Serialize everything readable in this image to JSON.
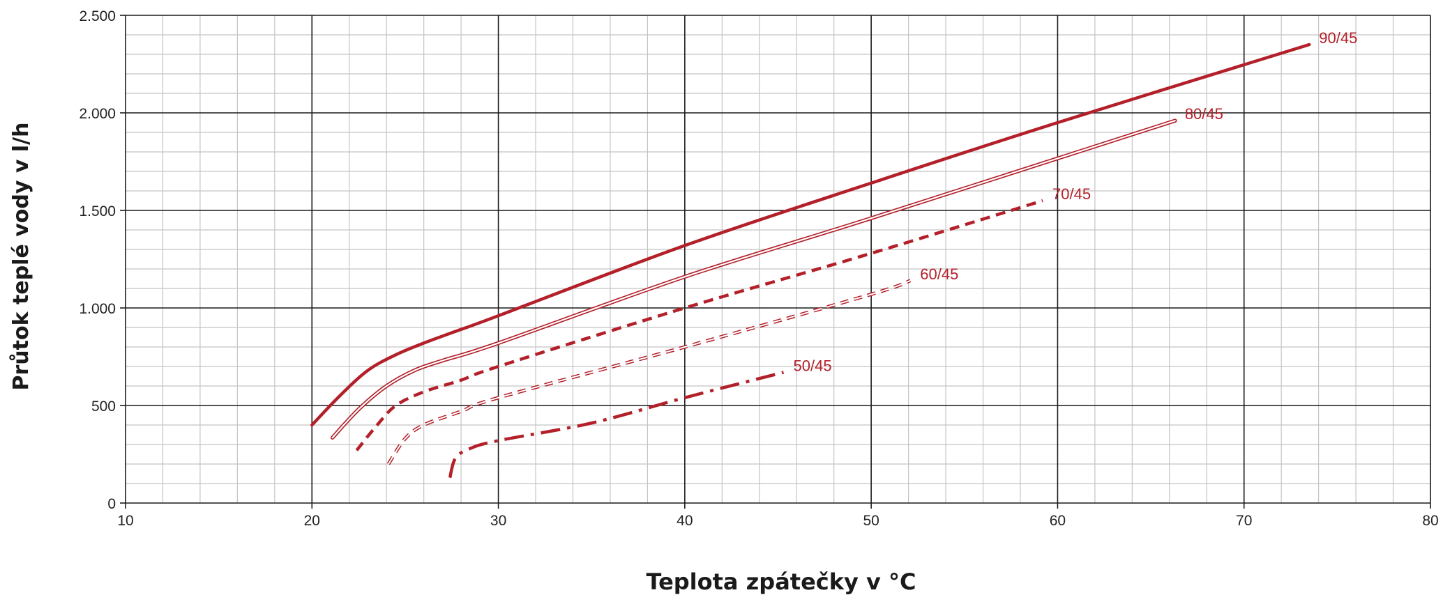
{
  "chart_data": {
    "type": "line",
    "title": "",
    "xlabel": "Teplota zpátečky v °C",
    "ylabel": "Průtok teplé vody v l/h",
    "xlim": [
      10,
      80
    ],
    "ylim": [
      0,
      2500
    ],
    "x_ticks": [
      10,
      20,
      30,
      40,
      50,
      60,
      70,
      80
    ],
    "x_tick_labels": [
      "10",
      "20",
      "30",
      "40",
      "50",
      "60",
      "70",
      "80"
    ],
    "y_ticks": [
      0,
      500,
      1000,
      1500,
      2000,
      2500
    ],
    "y_tick_labels": [
      "0",
      "500",
      "1.000",
      "1.500",
      "2.000",
      "2.500"
    ],
    "grid": true,
    "minor_grid": true,
    "legend": "inline labels at line ends",
    "line_color": "#b3202a",
    "series": [
      {
        "name": "90/45",
        "style": "solid-thick",
        "points": [
          [
            20.0,
            400
          ],
          [
            21.5,
            550
          ],
          [
            23,
            680
          ],
          [
            24.5,
            760
          ],
          [
            26,
            820
          ],
          [
            28,
            890
          ],
          [
            30,
            960
          ],
          [
            40,
            1320
          ],
          [
            50,
            1640
          ],
          [
            60,
            1950
          ],
          [
            73.5,
            2350
          ]
        ]
      },
      {
        "name": "80/45",
        "style": "double",
        "points": [
          [
            21.1,
            335
          ],
          [
            22.5,
            480
          ],
          [
            24,
            600
          ],
          [
            25.5,
            680
          ],
          [
            27,
            730
          ],
          [
            30,
            820
          ],
          [
            40,
            1160
          ],
          [
            50,
            1460
          ],
          [
            66.3,
            1960
          ]
        ]
      },
      {
        "name": "70/45",
        "style": "dashed-thick",
        "points": [
          [
            22.4,
            270
          ],
          [
            23.5,
            400
          ],
          [
            24.5,
            500
          ],
          [
            26,
            570
          ],
          [
            28,
            630
          ],
          [
            30,
            700
          ],
          [
            40,
            1000
          ],
          [
            50,
            1280
          ],
          [
            59.2,
            1550
          ]
        ]
      },
      {
        "name": "60/45",
        "style": "dashed-double",
        "points": [
          [
            24.1,
            200
          ],
          [
            25,
            330
          ],
          [
            26,
            400
          ],
          [
            28,
            470
          ],
          [
            30,
            540
          ],
          [
            40,
            800
          ],
          [
            50,
            1070
          ],
          [
            52.1,
            1140
          ]
        ]
      },
      {
        "name": "50/45",
        "style": "dash-dot",
        "points": [
          [
            27.4,
            130
          ],
          [
            27.7,
            230
          ],
          [
            28.5,
            280
          ],
          [
            30,
            320
          ],
          [
            35,
            410
          ],
          [
            40,
            540
          ],
          [
            45.3,
            670
          ]
        ]
      }
    ]
  }
}
